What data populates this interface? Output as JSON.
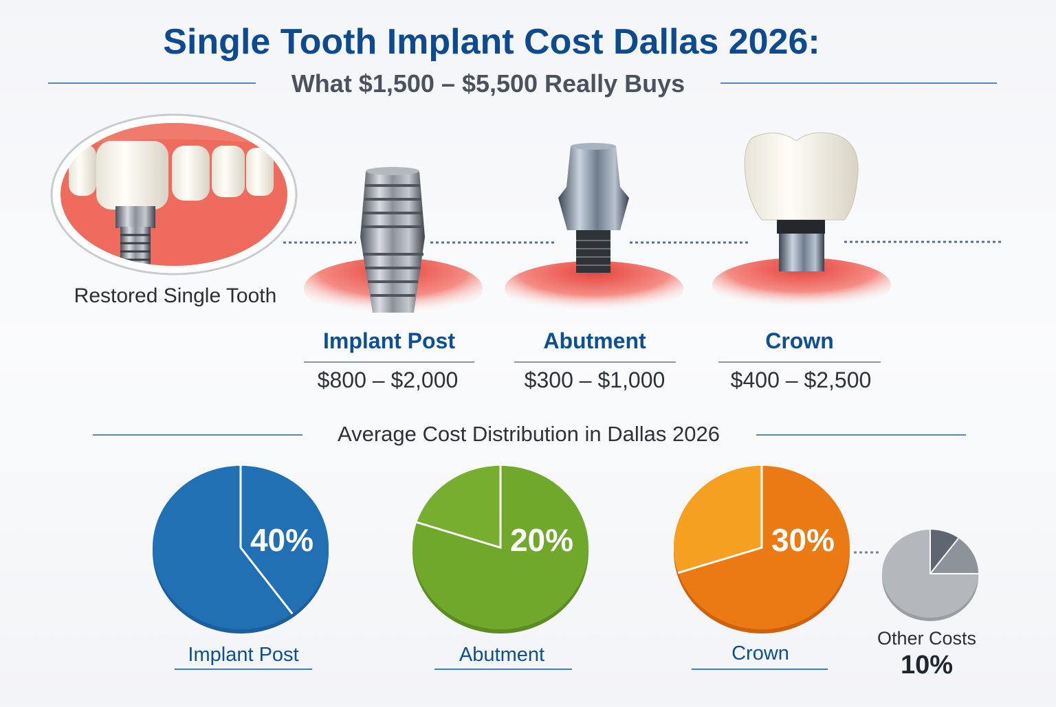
{
  "header": {
    "title": "Single Tooth Implant Cost Dallas 2026:",
    "subtitle": "What $1,500 – $5,500 Really Buys"
  },
  "illustration": {
    "caption": "Restored Single Tooth"
  },
  "components": [
    {
      "name": "Implant Post",
      "price": "$800 – $2,000"
    },
    {
      "name": "Abutment",
      "price": "$300 – $1,000"
    },
    {
      "name": "Crown",
      "price": "$400 – $2,500"
    }
  ],
  "colors": {
    "title": "#0d4a8f",
    "accent_blue": "#2170b3",
    "green": "#6fa82a",
    "orange": "#ec7a14",
    "orange_light": "#f5a021",
    "grey": "#b4b7bc",
    "grey_dark": "#5f6672"
  },
  "chart_data": {
    "type": "pie",
    "title": "Average Cost Distribution in Dallas 2026",
    "categories": [
      "Implant Post",
      "Abutment",
      "Crown",
      "Other Costs"
    ],
    "values": [
      40,
      20,
      30,
      10
    ],
    "labels": [
      "40%",
      "20%",
      "30%",
      "10%"
    ]
  }
}
